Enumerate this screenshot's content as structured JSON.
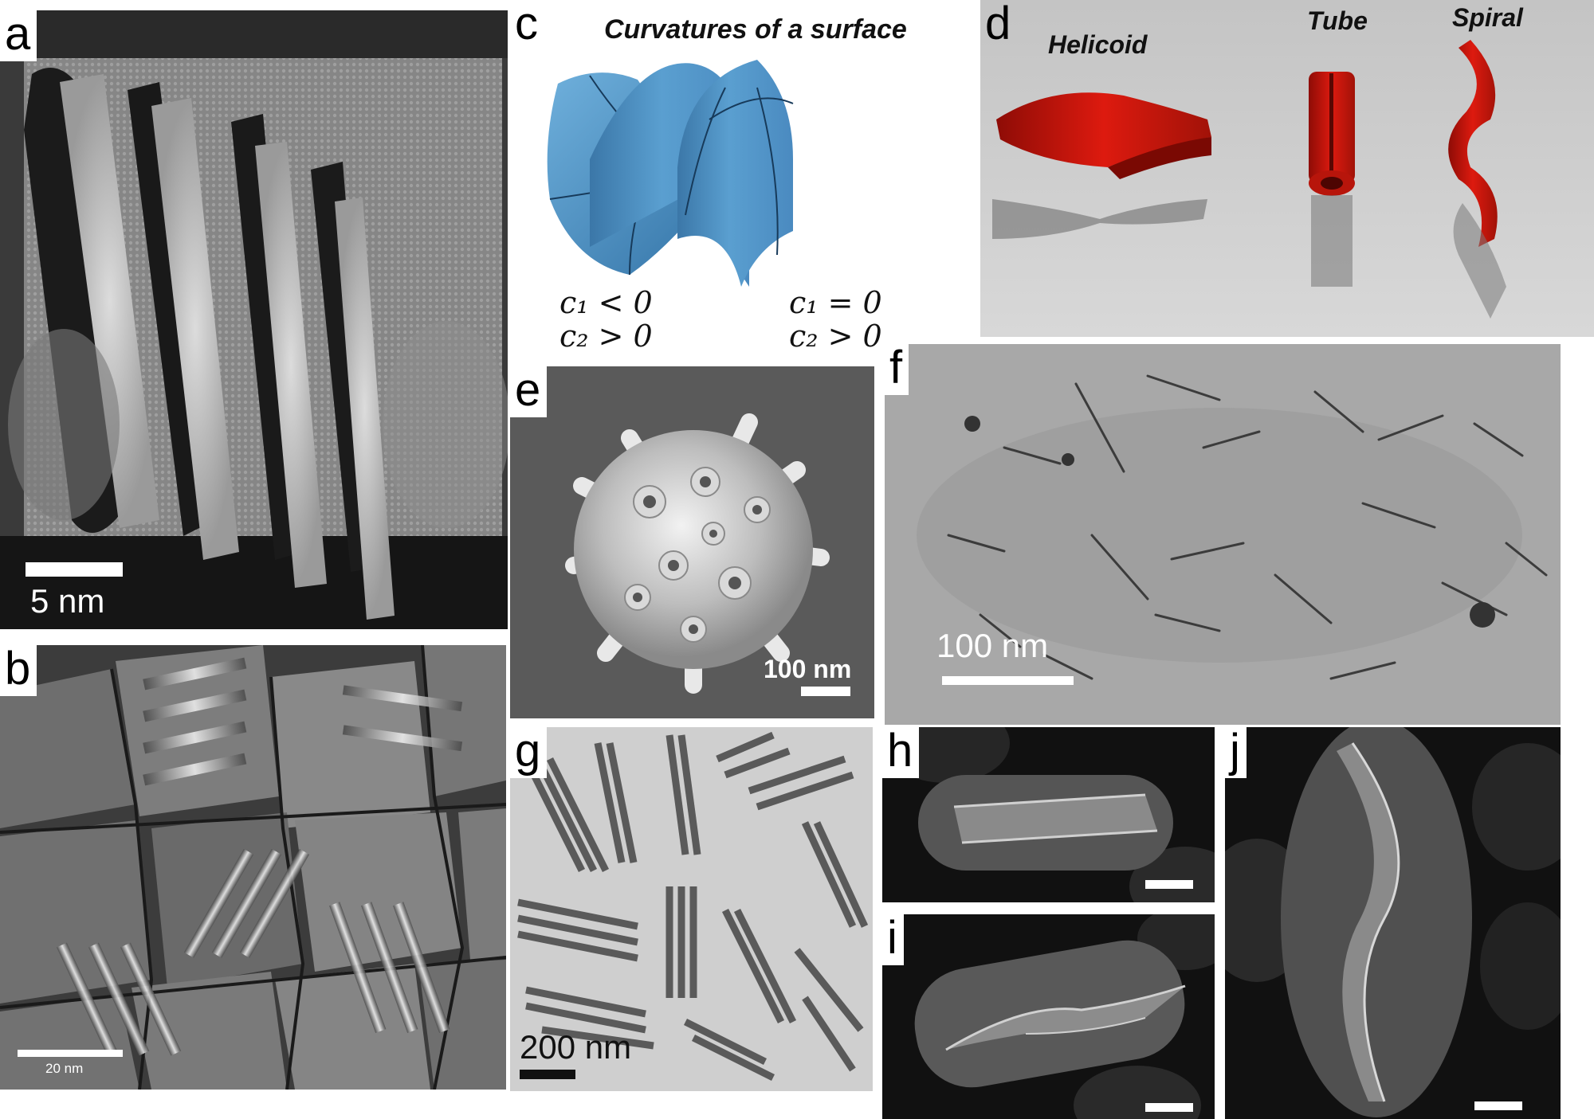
{
  "panels": {
    "a": {
      "letter": "a",
      "scale_label": "5 nm"
    },
    "b": {
      "letter": "b",
      "scale_label": "20 nm"
    },
    "c": {
      "letter": "c",
      "title": "Curvatures of a surface",
      "left_eq1": "c₁ < 0",
      "left_eq2": "c₂ > 0",
      "right_eq1": "c₁ = 0",
      "right_eq2": "c₂ > 0"
    },
    "d": {
      "letter": "d",
      "helicoid": "Helicoid",
      "tube": "Tube",
      "spiral": "Spiral"
    },
    "e": {
      "letter": "e",
      "scale_label": "100 nm"
    },
    "f": {
      "letter": "f",
      "scale_label": "100 nm"
    },
    "g": {
      "letter": "g",
      "scale_label": "200 nm"
    },
    "h": {
      "letter": "h"
    },
    "i": {
      "letter": "i"
    },
    "j": {
      "letter": "j"
    }
  },
  "colors": {
    "red": "#dd1a0f",
    "blue": "#4a8fc4",
    "scale_bar": "#ffffff"
  }
}
